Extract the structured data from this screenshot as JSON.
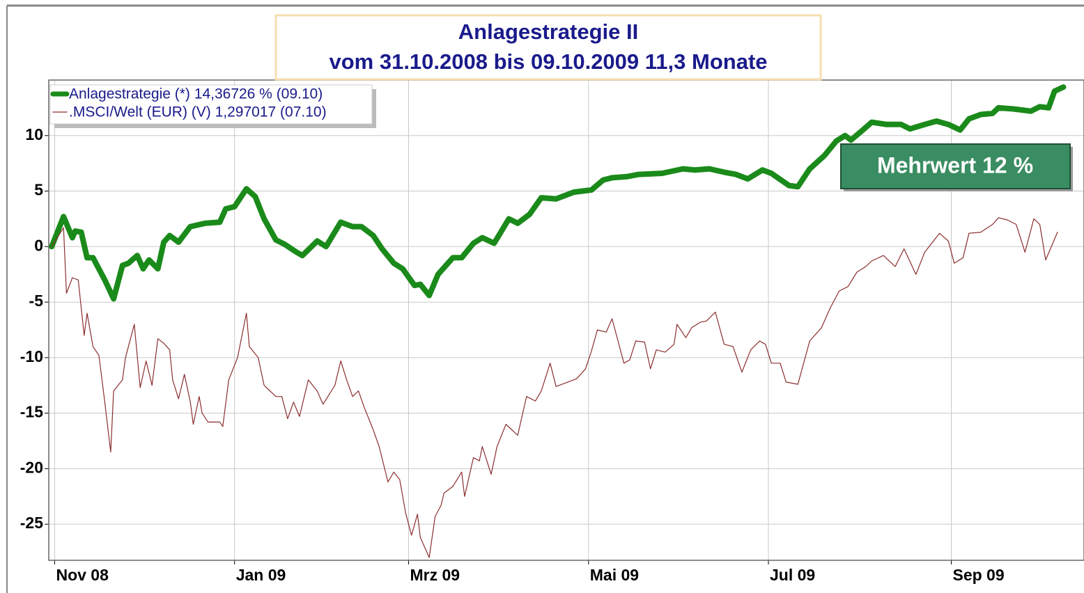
{
  "chart_data": {
    "type": "line",
    "title": "Anlagestrategie II",
    "subtitle": "vom 31.10.2008 bis 09.10.2009 11,3 Monate",
    "annotation": "Mehrwert 12 %",
    "xlim": [
      -1,
      350
    ],
    "xticks": [
      {
        "value": 1,
        "label": "Nov 08"
      },
      {
        "value": 62,
        "label": "Jan 09"
      },
      {
        "value": 121,
        "label": "Mrz 09"
      },
      {
        "value": 182,
        "label": "Mai 09"
      },
      {
        "value": 243,
        "label": "Jul 09"
      },
      {
        "value": 305,
        "label": "Sep 09"
      }
    ],
    "ylim": [
      -28.25,
      15
    ],
    "yticks": [
      -25,
      -20,
      -15,
      -10,
      -5,
      0,
      5,
      10
    ],
    "grid": true,
    "legend": "top-left",
    "series": [
      {
        "name": "Anlagestrategie (*) 14,36726 % (09.10)",
        "color": "#1a8a1a",
        "width": 8,
        "x": [
          0,
          4,
          7,
          8,
          10,
          12,
          14,
          18,
          21,
          24,
          26,
          29,
          31,
          33,
          36,
          38,
          40,
          43,
          47,
          52,
          57,
          59,
          62,
          66,
          69,
          72,
          76,
          79,
          83,
          85,
          90,
          93,
          98,
          102,
          105,
          109,
          112,
          116,
          119,
          123,
          125,
          128,
          131,
          136,
          139,
          143,
          146,
          150,
          155,
          158,
          162,
          166,
          171,
          177,
          183,
          187,
          190,
          195,
          199,
          207,
          214,
          218,
          223,
          228,
          232,
          236,
          241,
          244,
          250,
          253,
          257,
          262,
          266,
          269,
          271,
          275,
          278,
          283,
          288,
          291,
          296,
          300,
          304,
          308,
          311,
          315,
          319,
          321,
          326,
          332,
          335,
          338,
          340,
          343
        ],
        "values": [
          0,
          2.7,
          0.8,
          1.4,
          1.3,
          -1,
          -1,
          -3,
          -4.7,
          -1.7,
          -1.5,
          -0.8,
          -2,
          -1.2,
          -2,
          0.4,
          1,
          0.4,
          1.8,
          2.1,
          2.2,
          3.4,
          3.6,
          5.2,
          4.5,
          2.5,
          0.6,
          0.2,
          -0.5,
          -0.8,
          0.5,
          0,
          2.2,
          1.8,
          1.8,
          1,
          -0.2,
          -1.5,
          -2,
          -3.5,
          -3.4,
          -4.4,
          -2.5,
          -1,
          -1,
          0.3,
          0.8,
          0.3,
          2.5,
          2.1,
          2.9,
          4.4,
          4.3,
          4.9,
          5.1,
          6,
          6.2,
          6.3,
          6.5,
          6.6,
          7,
          6.9,
          7,
          6.7,
          6.5,
          6.1,
          6.9,
          6.6,
          5.5,
          5.4,
          7,
          8.2,
          9.5,
          10,
          9.6,
          10.5,
          11.2,
          11,
          11,
          10.6,
          11,
          11.3,
          11,
          10.5,
          11.5,
          11.9,
          12,
          12.5,
          12.4,
          12.2,
          12.6,
          12.5,
          14,
          14.37
        ]
      },
      {
        "name": ".MSCI/Welt (EUR) (V) 1,297017 (07.10)",
        "color": "#8b2e2e",
        "width": 1.2,
        "x": [
          0,
          4,
          5,
          7,
          9,
          11,
          12,
          14,
          16,
          18,
          20,
          21,
          24,
          25,
          28,
          30,
          32,
          34,
          36,
          38,
          40,
          41,
          43,
          45,
          47,
          48,
          50,
          51,
          53,
          57,
          58,
          60,
          63,
          66,
          67,
          70,
          72,
          76,
          78,
          80,
          82,
          84,
          87,
          90,
          92,
          96,
          98,
          100,
          102,
          104,
          106,
          109,
          111,
          114,
          116,
          118,
          120,
          122,
          124,
          125,
          128,
          130,
          132,
          133,
          136,
          139,
          140,
          143,
          145,
          146,
          149,
          151,
          154,
          156,
          158,
          161,
          164,
          166,
          169,
          171,
          175,
          178,
          181,
          183,
          185,
          188,
          190,
          192,
          194,
          196,
          198,
          201,
          203,
          205,
          208,
          211,
          212,
          215,
          217,
          220,
          222,
          225,
          228,
          231,
          234,
          237,
          240,
          242,
          244,
          247,
          249,
          253,
          257,
          261,
          264,
          267,
          270,
          273,
          276,
          278,
          282,
          286,
          289,
          293,
          296,
          301,
          304,
          306,
          309,
          311,
          315,
          319,
          321,
          324,
          327,
          330,
          333,
          335,
          337,
          341
        ],
        "values": [
          0,
          1.7,
          -4.2,
          -2.8,
          -3,
          -8,
          -6,
          -9,
          -9.8,
          -14,
          -18.5,
          -13,
          -12,
          -10,
          -7,
          -12.7,
          -10.3,
          -12.5,
          -8.3,
          -8.7,
          -9.3,
          -12,
          -13.7,
          -11.5,
          -14,
          -16,
          -13.5,
          -15,
          -15.8,
          -15.8,
          -16.2,
          -12,
          -10,
          -6,
          -9,
          -10,
          -12.5,
          -13.5,
          -13.5,
          -15.5,
          -14,
          -15.3,
          -12,
          -13,
          -14.2,
          -12.5,
          -10.3,
          -12,
          -13.5,
          -13,
          -14.5,
          -16.5,
          -18,
          -21.2,
          -20.3,
          -21,
          -24,
          -26,
          -24.1,
          -26.2,
          -28,
          -24.3,
          -23.3,
          -22.2,
          -21.6,
          -20.3,
          -22.5,
          -19,
          -19.3,
          -18,
          -20.5,
          -18,
          -16,
          -16.5,
          -17,
          -13.5,
          -13.9,
          -13,
          -10.5,
          -12.6,
          -12.2,
          -11.9,
          -11,
          -9.4,
          -7.5,
          -7.7,
          -6.5,
          -8.5,
          -10.5,
          -10.2,
          -8.5,
          -8.6,
          -11,
          -9.3,
          -9.5,
          -8.8,
          -7,
          -8.2,
          -7.3,
          -6.8,
          -6.7,
          -5.9,
          -8.8,
          -9,
          -11.3,
          -9.3,
          -8.5,
          -8.8,
          -10.5,
          -10.5,
          -12.2,
          -12.4,
          -8.5,
          -7.3,
          -5.5,
          -4,
          -3.6,
          -2.3,
          -1.8,
          -1.3,
          -0.8,
          -1.8,
          -0.2,
          -2.5,
          -0.5,
          1.2,
          0.5,
          -1.5,
          -1,
          1.2,
          1.3,
          2,
          2.6,
          2.4,
          2,
          -0.5,
          2.5,
          2,
          -1.2,
          1.3
        ]
      }
    ]
  }
}
